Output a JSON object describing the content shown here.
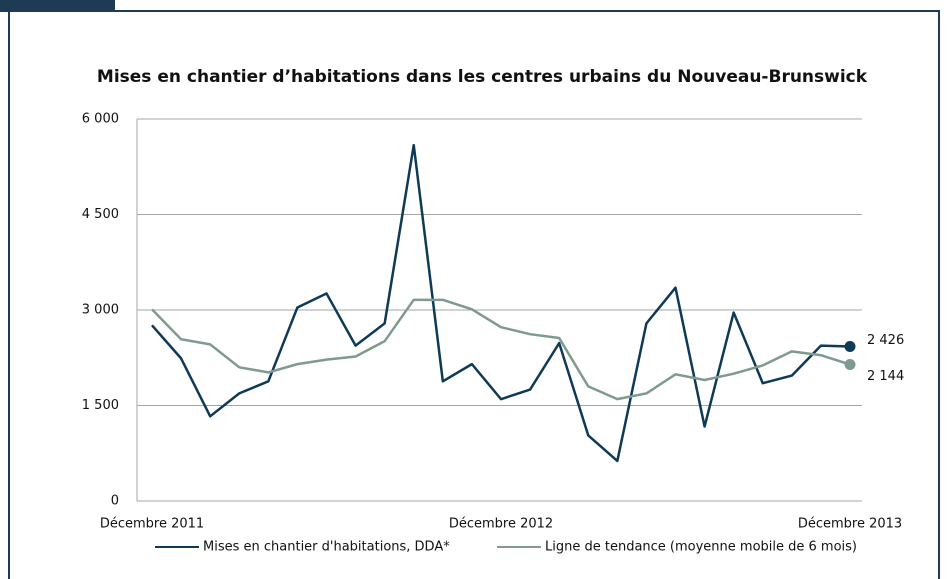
{
  "chart_data": {
    "type": "line",
    "title": "Mises en chantier d’habitations dans les centres urbains du Nouveau-Brunswick",
    "categories": [
      "Décembre 2011",
      null,
      null,
      null,
      null,
      null,
      null,
      null,
      null,
      null,
      null,
      null,
      "Décembre 2012",
      null,
      null,
      null,
      null,
      null,
      null,
      null,
      null,
      null,
      null,
      null,
      "Décembre 2013"
    ],
    "series": [
      {
        "name": "Mises en chantier d'habitations, DDA*",
        "color": "#0e3a57",
        "values": [
          2760,
          2240,
          1330,
          1690,
          1880,
          3040,
          3260,
          2440,
          2790,
          5590,
          1880,
          2150,
          1600,
          1750,
          2480,
          1030,
          630,
          2790,
          3350,
          1170,
          2960,
          1850,
          1970,
          2440,
          2426
        ],
        "value_labels": [
          null,
          null,
          null,
          null,
          null,
          null,
          null,
          null,
          null,
          null,
          null,
          null,
          null,
          null,
          null,
          null,
          null,
          null,
          null,
          null,
          null,
          null,
          null,
          null,
          "2 426"
        ]
      },
      {
        "name": "Ligne de tendance (moyenne mobile de 6 mois)",
        "color": "#7f9a8e",
        "values": [
          3010,
          2540,
          2460,
          2100,
          2020,
          2150,
          2220,
          2270,
          2510,
          3160,
          3160,
          3010,
          2730,
          2620,
          2560,
          1800,
          1600,
          1690,
          1990,
          1900,
          2000,
          2130,
          2350,
          2290,
          2144
        ],
        "value_labels": [
          null,
          null,
          null,
          null,
          null,
          null,
          null,
          null,
          null,
          null,
          null,
          null,
          null,
          null,
          null,
          null,
          null,
          null,
          null,
          null,
          null,
          null,
          null,
          null,
          "2 144"
        ]
      }
    ],
    "ylim": [
      0,
      6000
    ],
    "yticks": [
      0,
      {
        "value": 1500,
        "label": "1 500"
      },
      {
        "value": 3000,
        "label": "3 000"
      },
      {
        "value": 4500,
        "label": "4 500"
      },
      {
        "value": 6000,
        "label": "6 000"
      }
    ],
    "grid": true,
    "legend": "bottom"
  }
}
